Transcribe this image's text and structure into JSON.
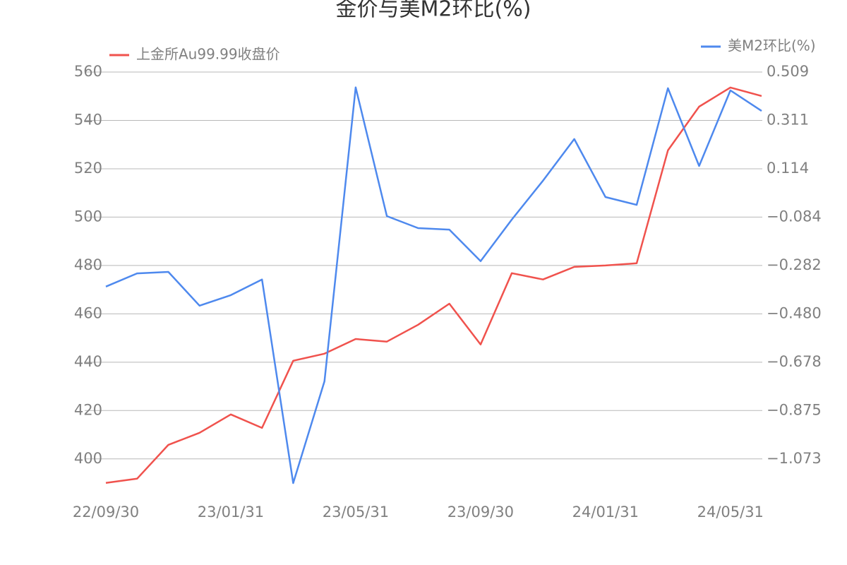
{
  "chart_data": {
    "type": "line",
    "title": "金价与美M2环比(%)",
    "categories": [
      "22/09/30",
      null,
      null,
      null,
      "23/01/31",
      null,
      null,
      null,
      "23/05/31",
      null,
      null,
      null,
      "23/09/30",
      null,
      null,
      null,
      "24/01/31",
      null,
      null,
      null,
      "24/05/31",
      null
    ],
    "series": [
      {
        "name": "上金所Au99.99收盘价",
        "color": "#f0524d",
        "axis": "y",
        "values": [
          390.1,
          391.8,
          405.8,
          410.8,
          418.4,
          412.8,
          440.6,
          443.5,
          449.6,
          448.5,
          455.5,
          464.2,
          447.3,
          476.8,
          474.2,
          479.4,
          480.0,
          480.9,
          527.6,
          545.7,
          553.6,
          550.1
        ]
      },
      {
        "name": "美M2环比(%)",
        "color": "#4e89ee",
        "axis": "y2",
        "values": [
          -0.368,
          -0.314,
          -0.308,
          -0.446,
          -0.403,
          -0.339,
          -1.171,
          -0.755,
          0.446,
          -0.08,
          -0.129,
          -0.135,
          -0.264,
          -0.094,
          0.065,
          0.235,
          -0.002,
          -0.034,
          0.443,
          0.125,
          0.434,
          0.35
        ]
      }
    ],
    "ylim": [
      390,
      560
    ],
    "yticks": [
      400,
      420,
      440,
      460,
      480,
      500,
      520,
      540,
      560
    ],
    "y2lim": [
      -1.171,
      0.509
    ],
    "y2ticks": [
      {
        "value": -1.073,
        "label": "−1.073"
      },
      {
        "value": -0.875,
        "label": "−0.875"
      },
      {
        "value": -0.678,
        "label": "−0.678"
      },
      {
        "value": -0.48,
        "label": "−0.480"
      },
      {
        "value": -0.282,
        "label": "−0.282"
      },
      {
        "value": -0.084,
        "label": "−0.084"
      },
      {
        "value": 0.114,
        "label": "0.114"
      },
      {
        "value": 0.311,
        "label": "0.311"
      },
      {
        "value": 0.509,
        "label": "0.509"
      }
    ],
    "grid": true
  }
}
